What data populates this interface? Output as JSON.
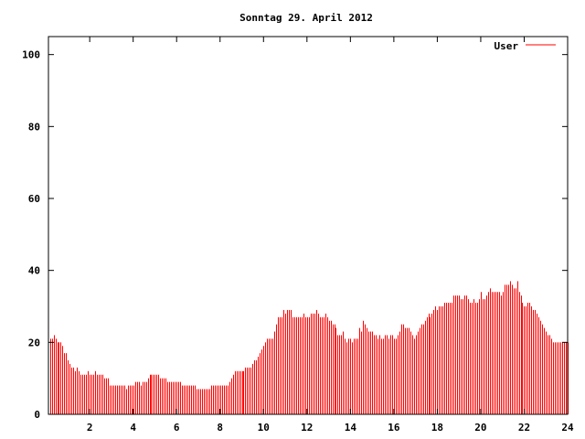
{
  "chart_data": {
    "type": "bar",
    "title": "Sonntag 29. April 2012",
    "xlabel": "",
    "ylabel": "",
    "xlim": [
      0.1,
      24
    ],
    "ylim": [
      0,
      105
    ],
    "x_ticks": [
      "2",
      "4",
      "6",
      "8",
      "10",
      "12",
      "14",
      "16",
      "18",
      "20",
      "22",
      "24"
    ],
    "y_ticks": [
      "0",
      "20",
      "40",
      "60",
      "80",
      "100"
    ],
    "legend": {
      "label": "User",
      "placement": "top-right",
      "color": "#ff0000"
    },
    "interval_minutes": 5,
    "series": [
      {
        "name": "User",
        "color": "#ff0000",
        "values": [
          20,
          21,
          21,
          22,
          21,
          20,
          20,
          20,
          19,
          17,
          17,
          15,
          14,
          13,
          13,
          12,
          13,
          12,
          11,
          11,
          11,
          11,
          12,
          11,
          11,
          11,
          12,
          11,
          11,
          11,
          11,
          10,
          10,
          10,
          8,
          8,
          8,
          8,
          8,
          8,
          8,
          8,
          8,
          7,
          8,
          8,
          8,
          8,
          9,
          9,
          9,
          8,
          9,
          9,
          9,
          10,
          11,
          11,
          11,
          11,
          11,
          11,
          10,
          10,
          10,
          10,
          9,
          9,
          9,
          9,
          9,
          9,
          9,
          9,
          8,
          8,
          8,
          8,
          8,
          8,
          8,
          8,
          7,
          7,
          7,
          7,
          7,
          7,
          7,
          7,
          8,
          8,
          8,
          8,
          8,
          8,
          8,
          8,
          8,
          8,
          9,
          10,
          11,
          12,
          12,
          12,
          12,
          12,
          12,
          13,
          13,
          13,
          13,
          14,
          15,
          15,
          16,
          17,
          18,
          19,
          20,
          21,
          21,
          21,
          21,
          23,
          25,
          27,
          27,
          27,
          29,
          28,
          29,
          29,
          29,
          27,
          27,
          27,
          27,
          27,
          27,
          28,
          27,
          27,
          27,
          28,
          28,
          28,
          29,
          28,
          27,
          27,
          27,
          28,
          27,
          26,
          26,
          25,
          25,
          24,
          22,
          22,
          22,
          23,
          21,
          20,
          21,
          21,
          20,
          21,
          21,
          21,
          24,
          23,
          26,
          25,
          24,
          23,
          23,
          23,
          22,
          22,
          21,
          22,
          21,
          21,
          22,
          22,
          21,
          22,
          22,
          21,
          21,
          22,
          23,
          25,
          25,
          24,
          24,
          24,
          23,
          22,
          21,
          22,
          23,
          24,
          25,
          25,
          26,
          27,
          28,
          27,
          28,
          29,
          30,
          29,
          30,
          30,
          30,
          31,
          31,
          31,
          31,
          31,
          33,
          33,
          33,
          33,
          32,
          32,
          33,
          33,
          32,
          31,
          31,
          32,
          31,
          31,
          32,
          34,
          32,
          32,
          33,
          34,
          35,
          34,
          34,
          34,
          34,
          34,
          33,
          34,
          36,
          36,
          36,
          37,
          36,
          35,
          35,
          37,
          34,
          33,
          31,
          30,
          30,
          31,
          31,
          30,
          29,
          29,
          28,
          27,
          26,
          25,
          24,
          23,
          22,
          22,
          21,
          20,
          20,
          20,
          20,
          20,
          20,
          20,
          20,
          20
        ]
      }
    ]
  }
}
